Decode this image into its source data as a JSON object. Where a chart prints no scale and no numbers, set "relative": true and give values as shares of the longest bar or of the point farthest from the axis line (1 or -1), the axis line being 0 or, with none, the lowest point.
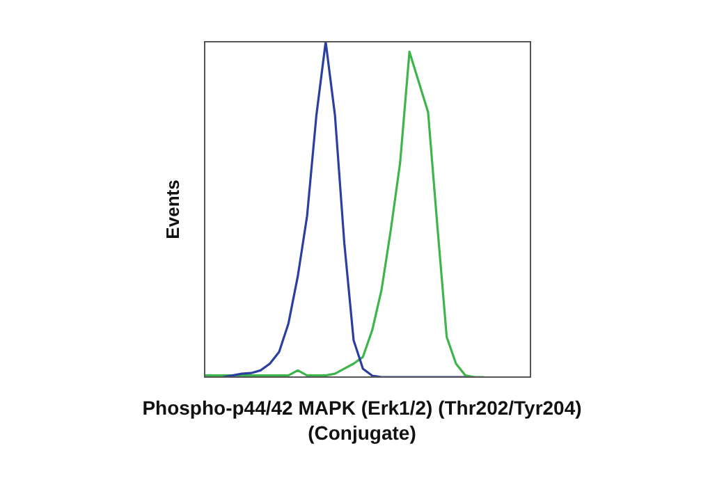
{
  "chart_data": {
    "type": "line",
    "relative": true,
    "ylabel": "Events",
    "xlabel": "Phospho-p44/42 MAPK (Erk1/2) (Thr202/Tyr204) (Conjugate)",
    "legend": false,
    "grid": false,
    "marker": "none",
    "categories": [
      null,
      null,
      null,
      null,
      null,
      null,
      null,
      null,
      null,
      null,
      null,
      null,
      null,
      null,
      null,
      null,
      null,
      null,
      null,
      null,
      null,
      null,
      null,
      null,
      null,
      null,
      null,
      null,
      null,
      null,
      null,
      null,
      null,
      null,
      null,
      null
    ],
    "series": [
      {
        "color": "#2b3fa0",
        "values": [
          null,
          null,
          0,
          0.005,
          0.01,
          0.012,
          0.02,
          0.04,
          0.075,
          0.16,
          0.3,
          0.48,
          0.78,
          1,
          0.78,
          0.4,
          0.11,
          0.025,
          0.004,
          0,
          0,
          0,
          0,
          0,
          0,
          0,
          0,
          0,
          0,
          null,
          null,
          null,
          null,
          null,
          null,
          null
        ]
      },
      {
        "color": "#3cb54a",
        "values": [
          0.005,
          0.005,
          0.005,
          0.005,
          0.005,
          0.005,
          0.005,
          0.005,
          0.005,
          0.005,
          0.02,
          0.005,
          0.005,
          0.005,
          0.01,
          0.025,
          0.04,
          0.06,
          0.14,
          0.26,
          0.44,
          0.64,
          0.97,
          0.88,
          0.79,
          0.45,
          0.12,
          0.04,
          0.005,
          0,
          0,
          null,
          null,
          null,
          null,
          null
        ]
      }
    ]
  }
}
